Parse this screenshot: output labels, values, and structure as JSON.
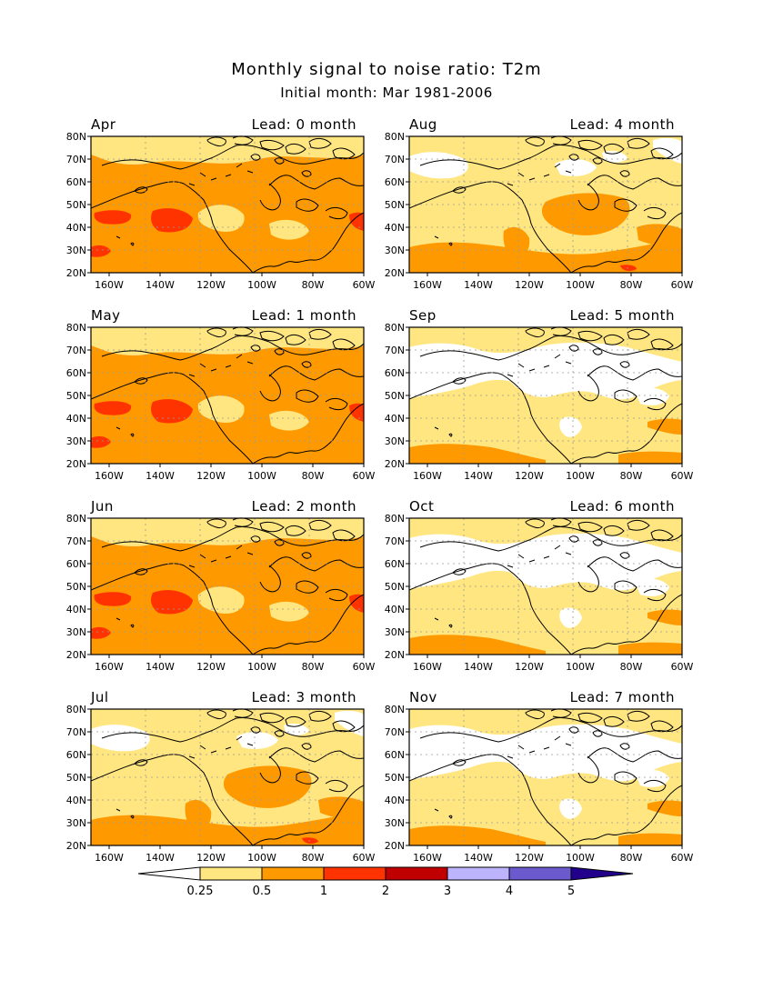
{
  "title": "Monthly signal to noise ratio: T2m",
  "subtitle": "Initial month: Mar 1981-2006",
  "colors": {
    "white": "#ffffff",
    "light_yellow": "#ffe680",
    "orange": "#ff9900",
    "red_orange": "#ff3300",
    "dark_red": "#c00000",
    "light_purple": "#bdb4ff",
    "medium_purple": "#6a5acd",
    "dark_blue": "#22008c",
    "coast": "#000000",
    "grid": "#9a9a9a"
  },
  "lon_ticks": [
    "160W",
    "140W",
    "120W",
    "100W",
    "80W",
    "60W"
  ],
  "lat_ticks": [
    "20N",
    "30N",
    "40N",
    "50N",
    "60N",
    "70N",
    "80N"
  ],
  "panels": [
    {
      "month": "Apr",
      "lead": "Lead: 0 month",
      "level": "high"
    },
    {
      "month": "Aug",
      "lead": "Lead: 4 month",
      "level": "mid"
    },
    {
      "month": "May",
      "lead": "Lead: 1 month",
      "level": "high"
    },
    {
      "month": "Sep",
      "lead": "Lead: 5 month",
      "level": "low"
    },
    {
      "month": "Jun",
      "lead": "Lead: 2 month",
      "level": "high"
    },
    {
      "month": "Oct",
      "lead": "Lead: 6 month",
      "level": "low"
    },
    {
      "month": "Jul",
      "lead": "Lead: 3 month",
      "level": "mid"
    },
    {
      "month": "Nov",
      "lead": "Lead: 7 month",
      "level": "low"
    }
  ],
  "colorbar": {
    "labels": [
      "0.25",
      "0.5",
      "1",
      "2",
      "3",
      "4",
      "5"
    ],
    "fills": [
      "#ffe680",
      "#ff9900",
      "#ff3300",
      "#c00000",
      "#bdb4ff",
      "#6a5acd"
    ],
    "low_end": "#ffffff",
    "high_end": "#22008c"
  }
}
